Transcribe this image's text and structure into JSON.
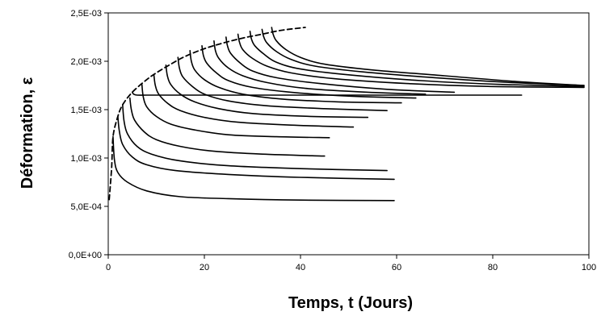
{
  "chart_data": {
    "type": "line",
    "title": "",
    "xlabel": "Temps, t (Jours)",
    "ylabel": "Déformation, ε",
    "xlim": [
      0,
      100
    ],
    "ylim": [
      0,
      0.0025
    ],
    "x_ticks": [
      0,
      20,
      40,
      60,
      80,
      100
    ],
    "x_tick_labels": [
      "0",
      "20",
      "40",
      "60",
      "80",
      "100"
    ],
    "y_ticks": [
      0,
      0.0005,
      0.001,
      0.0015,
      0.002,
      0.0025
    ],
    "y_tick_labels": [
      "0,0E+00",
      "5,0E-04",
      "1,0E-03",
      "1,5E-03",
      "2,0E-03",
      "2,5E-03"
    ],
    "grid": false,
    "legend": "none",
    "series": [
      {
        "style": "dashed",
        "x": [
          0.2,
          0.7,
          1.0,
          2.0,
          3.0,
          5.0,
          8.0,
          10.0,
          13.0,
          16.0,
          20.0,
          24.0,
          28.0,
          32.0,
          36.0,
          41.0
        ],
        "y": [
          0.00057,
          0.0009,
          0.00122,
          0.00143,
          0.00155,
          0.00168,
          0.00181,
          0.00188,
          0.00197,
          0.00205,
          0.00213,
          0.00219,
          0.00224,
          0.00228,
          0.00232,
          0.00235
        ]
      },
      {
        "style": "solid",
        "x": [
          1.0,
          1.3,
          2.0,
          4.0,
          8.0,
          15.0,
          25.0,
          40.0,
          59.5
        ],
        "y": [
          0.00122,
          0.00098,
          0.00085,
          0.00075,
          0.00066,
          0.0006,
          0.00058,
          0.000565,
          0.00056
        ]
      },
      {
        "style": "solid",
        "x": [
          2.0,
          2.3,
          3.0,
          5.0,
          8.0,
          14.0,
          25.0,
          40.0,
          59.5
        ],
        "y": [
          0.00143,
          0.00128,
          0.00114,
          0.00101,
          0.00093,
          0.00087,
          0.00083,
          0.0008,
          0.00078
        ]
      },
      {
        "style": "solid",
        "x": [
          3.0,
          3.3,
          4.0,
          6.0,
          9.0,
          15.0,
          25.0,
          40.0,
          58.0
        ],
        "y": [
          0.00155,
          0.00138,
          0.00125,
          0.00112,
          0.00104,
          0.00097,
          0.00092,
          0.00089,
          0.00087
        ]
      },
      {
        "style": "solid",
        "x": [
          4.5,
          4.8,
          5.5,
          7.5,
          10.0,
          15.0,
          22.0,
          32.0,
          45.0
        ],
        "y": [
          0.00162,
          0.0015,
          0.00139,
          0.00127,
          0.00119,
          0.00112,
          0.00107,
          0.00104,
          0.00102
        ]
      },
      {
        "style": "solid",
        "x": [
          7.0,
          7.3,
          8.0,
          10.0,
          13.0,
          18.0,
          25.0,
          35.0,
          46.0
        ],
        "y": [
          0.00176,
          0.00163,
          0.00153,
          0.00143,
          0.00135,
          0.00129,
          0.00124,
          0.00122,
          0.00121
        ]
      },
      {
        "style": "solid",
        "x": [
          9.5,
          9.8,
          10.5,
          12.5,
          15.0,
          20.0,
          27.0,
          38.0,
          51.0
        ],
        "y": [
          0.00186,
          0.00175,
          0.00166,
          0.00156,
          0.00149,
          0.00142,
          0.00137,
          0.00134,
          0.00132
        ]
      },
      {
        "style": "solid",
        "x": [
          12.0,
          12.3,
          13.0,
          15.0,
          18.0,
          23.0,
          30.0,
          42.0,
          54.0
        ],
        "y": [
          0.00196,
          0.00185,
          0.00176,
          0.00166,
          0.00158,
          0.00151,
          0.00146,
          0.00143,
          0.00142
        ]
      },
      {
        "style": "solid",
        "x": [
          14.5,
          14.8,
          15.5,
          17.5,
          20.0,
          25.0,
          33.0,
          45.0,
          58.0
        ],
        "y": [
          0.00204,
          0.00193,
          0.00184,
          0.00174,
          0.00166,
          0.00159,
          0.00154,
          0.00151,
          0.00149
        ]
      },
      {
        "style": "solid",
        "x": [
          17.0,
          17.3,
          18.0,
          20.0,
          23.0,
          28.0,
          36.0,
          48.0,
          61.0
        ],
        "y": [
          0.00211,
          0.002,
          0.00191,
          0.00181,
          0.00173,
          0.00166,
          0.00161,
          0.00158,
          0.00157
        ]
      },
      {
        "style": "solid",
        "x": [
          19.5,
          19.8,
          20.5,
          22.5,
          25.0,
          30.0,
          38.0,
          50.0,
          64.0
        ],
        "y": [
          0.00216,
          0.00206,
          0.00198,
          0.00188,
          0.0018,
          0.00173,
          0.00168,
          0.00164,
          0.00162
        ]
      },
      {
        "style": "solid",
        "x": [
          22.0,
          22.3,
          23.0,
          25.0,
          28.0,
          33.0,
          41.0,
          54.0,
          66.0
        ],
        "y": [
          0.00221,
          0.00211,
          0.00203,
          0.00193,
          0.00185,
          0.00178,
          0.00172,
          0.00168,
          0.00166
        ]
      },
      {
        "style": "solid",
        "x": [
          24.5,
          24.8,
          25.5,
          27.5,
          30.0,
          35.0,
          44.0,
          58.0,
          72.0
        ],
        "y": [
          0.00225,
          0.00216,
          0.00208,
          0.00198,
          0.0019,
          0.00183,
          0.00177,
          0.00171,
          0.00168
        ]
      },
      {
        "style": "solid",
        "x": [
          27.0,
          27.3,
          28.0,
          30.0,
          33.0,
          38.0,
          47.0,
          62.0,
          79.0,
          99.0
        ],
        "y": [
          0.00228,
          0.0022,
          0.00212,
          0.00203,
          0.00195,
          0.00188,
          0.00182,
          0.00177,
          0.00174,
          0.00173
        ]
      },
      {
        "style": "solid",
        "x": [
          29.5,
          29.8,
          30.5,
          32.5,
          35.0,
          40.0,
          50.0,
          65.0,
          82.0,
          99.0
        ],
        "y": [
          0.00231,
          0.00223,
          0.00216,
          0.00207,
          0.00199,
          0.00192,
          0.00186,
          0.0018,
          0.00176,
          0.00174
        ]
      },
      {
        "style": "solid",
        "x": [
          32.0,
          32.3,
          33.0,
          35.0,
          38.0,
          43.0,
          53.0,
          68.0,
          84.0,
          99.0
        ],
        "y": [
          0.00233,
          0.00226,
          0.00219,
          0.0021,
          0.00202,
          0.00195,
          0.00189,
          0.00183,
          0.00178,
          0.00175
        ]
      },
      {
        "style": "solid",
        "x": [
          34.0,
          34.3,
          35.0,
          37.0,
          40.0,
          45.0,
          55.0,
          70.0,
          85.0,
          99.0
        ],
        "y": [
          0.00235,
          0.00228,
          0.00221,
          0.00212,
          0.00204,
          0.00197,
          0.00191,
          0.00185,
          0.00179,
          0.00175
        ]
      },
      {
        "style": "solid",
        "x": [
          5.0,
          5.3,
          6.0,
          8.0,
          12.0,
          20.0,
          35.0,
          55.0,
          75.0,
          86.0
        ],
        "y": [
          0.00168,
          0.00166,
          0.00165,
          0.00165,
          0.00165,
          0.00165,
          0.00165,
          0.00165,
          0.00165,
          0.00165
        ]
      }
    ]
  }
}
